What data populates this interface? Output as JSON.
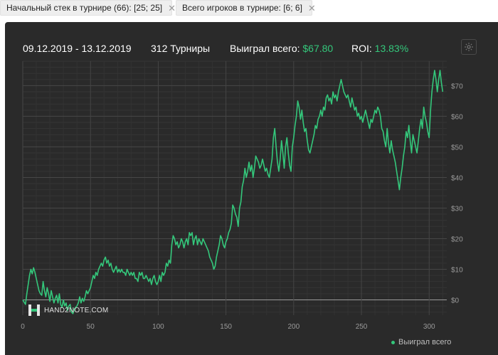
{
  "filters": [
    {
      "label": "Начальный стек в турнире (66): [25; 25]",
      "close": "✕"
    },
    {
      "label": "Всего игроков в турнире: [6; 6]",
      "close": "✕"
    }
  ],
  "summary": {
    "date_range": "09.12.2019 - 13.12.2019",
    "tournaments": "312 Турниры",
    "won_label": "Выиграл всего:",
    "won_value": "$67.80",
    "roi_label": "ROI:",
    "roi_value": "13.83%"
  },
  "watermark": {
    "logo_text": "HAND2NOTE.COM"
  },
  "colors": {
    "line": "#34c77b",
    "accent": "#34c77b",
    "panel": "#2a2a2a"
  },
  "chart_data": {
    "type": "line",
    "title": "",
    "xlabel": "",
    "ylabel": "",
    "xlim": [
      0,
      313
    ],
    "ylim": [
      -5,
      78
    ],
    "xticks": [
      0,
      50,
      100,
      150,
      200,
      250,
      300
    ],
    "yticks": [
      0,
      10,
      20,
      30,
      40,
      50,
      60,
      70
    ],
    "ytick_labels": [
      "$0",
      "$10",
      "$20",
      "$30",
      "$40",
      "$50",
      "$60",
      "$70"
    ],
    "grid": true,
    "legend_position": "bottom-right",
    "series": [
      {
        "name": "Выиграл всего",
        "points": [
          [
            0,
            0
          ],
          [
            2,
            -1.5
          ],
          [
            3,
            2
          ],
          [
            4,
            5
          ],
          [
            5,
            8
          ],
          [
            6,
            10
          ],
          [
            7,
            8.5
          ],
          [
            8,
            10.5
          ],
          [
            9,
            9
          ],
          [
            10,
            7
          ],
          [
            11,
            5
          ],
          [
            12,
            3
          ],
          [
            13,
            2
          ],
          [
            14,
            1.5
          ],
          [
            15,
            6
          ],
          [
            16,
            3
          ],
          [
            17,
            1
          ],
          [
            18,
            4
          ],
          [
            19,
            2
          ],
          [
            20,
            -0.5
          ],
          [
            21,
            3
          ],
          [
            22,
            1
          ],
          [
            23,
            -1
          ],
          [
            24,
            0.5
          ],
          [
            25,
            1.5
          ],
          [
            26,
            -1
          ],
          [
            27,
            2
          ],
          [
            28,
            -1.5
          ],
          [
            29,
            -2.5
          ],
          [
            30,
            0
          ],
          [
            31,
            -2
          ],
          [
            32,
            -1
          ],
          [
            33,
            -3.5
          ],
          [
            34,
            -2
          ],
          [
            35,
            -1.5
          ],
          [
            36,
            -4
          ],
          [
            37,
            -4.5
          ],
          [
            38,
            -3
          ],
          [
            39,
            -2.5
          ],
          [
            40,
            -2
          ],
          [
            41,
            -1
          ],
          [
            42,
            1
          ],
          [
            43,
            -1
          ],
          [
            44,
            0.5
          ],
          [
            45,
            -0.5
          ],
          [
            46,
            1
          ],
          [
            47,
            3
          ],
          [
            48,
            2
          ],
          [
            49,
            3
          ],
          [
            50,
            4
          ],
          [
            51,
            6
          ],
          [
            52,
            8
          ],
          [
            53,
            7
          ],
          [
            54,
            9
          ],
          [
            55,
            8
          ],
          [
            56,
            10
          ],
          [
            57,
            11
          ],
          [
            58,
            12
          ],
          [
            59,
            11
          ],
          [
            60,
            13
          ],
          [
            61,
            14
          ],
          [
            62,
            12
          ],
          [
            63,
            13
          ],
          [
            64,
            11
          ],
          [
            65,
            12
          ],
          [
            66,
            10
          ],
          [
            67,
            9
          ],
          [
            68,
            10
          ],
          [
            69,
            11
          ],
          [
            70,
            9
          ],
          [
            71,
            10
          ],
          [
            72,
            9
          ],
          [
            73,
            10
          ],
          [
            74,
            9
          ],
          [
            75,
            9
          ],
          [
            76,
            8
          ],
          [
            77,
            10
          ],
          [
            78,
            9
          ],
          [
            79,
            8
          ],
          [
            80,
            9
          ],
          [
            81,
            8
          ],
          [
            82,
            9
          ],
          [
            83,
            7
          ],
          [
            84,
            7
          ],
          [
            85,
            6
          ],
          [
            86,
            9
          ],
          [
            87,
            8
          ],
          [
            88,
            9
          ],
          [
            89,
            7
          ],
          [
            90,
            7
          ],
          [
            91,
            8
          ],
          [
            92,
            7
          ],
          [
            93,
            6
          ],
          [
            94,
            7
          ],
          [
            95,
            5
          ],
          [
            96,
            7
          ],
          [
            97,
            8
          ],
          [
            98,
            6
          ],
          [
            99,
            5
          ],
          [
            100,
            6
          ],
          [
            101,
            8
          ],
          [
            102,
            6
          ],
          [
            103,
            9
          ],
          [
            104,
            8
          ],
          [
            105,
            9
          ],
          [
            106,
            12
          ],
          [
            107,
            11
          ],
          [
            108,
            13
          ],
          [
            109,
            12
          ],
          [
            110,
            18
          ],
          [
            111,
            21
          ],
          [
            112,
            20
          ],
          [
            113,
            18
          ],
          [
            114,
            19
          ],
          [
            115,
            17
          ],
          [
            116,
            18
          ],
          [
            117,
            20
          ],
          [
            118,
            19
          ],
          [
            119,
            17
          ],
          [
            120,
            19
          ],
          [
            121,
            20
          ],
          [
            122,
            18
          ],
          [
            123,
            22
          ],
          [
            124,
            21
          ],
          [
            125,
            22
          ],
          [
            126,
            18
          ],
          [
            127,
            20
          ],
          [
            128,
            21
          ],
          [
            129,
            18
          ],
          [
            130,
            20
          ],
          [
            131,
            19
          ],
          [
            132,
            18
          ],
          [
            133,
            20
          ],
          [
            134,
            19
          ],
          [
            135,
            18
          ],
          [
            136,
            17
          ],
          [
            137,
            16
          ],
          [
            138,
            14
          ],
          [
            139,
            13
          ],
          [
            140,
            12
          ],
          [
            141,
            10
          ],
          [
            142,
            11
          ],
          [
            143,
            14
          ],
          [
            144,
            16
          ],
          [
            145,
            18
          ],
          [
            146,
            21
          ],
          [
            147,
            20
          ],
          [
            148,
            18
          ],
          [
            149,
            17
          ],
          [
            150,
            19
          ],
          [
            151,
            20
          ],
          [
            152,
            22
          ],
          [
            153,
            23
          ],
          [
            154,
            25
          ],
          [
            155,
            31
          ],
          [
            156,
            30
          ],
          [
            157,
            28
          ],
          [
            158,
            27
          ],
          [
            159,
            24
          ],
          [
            160,
            30
          ],
          [
            161,
            32
          ],
          [
            162,
            37
          ],
          [
            163,
            39
          ],
          [
            164,
            43
          ],
          [
            165,
            40
          ],
          [
            166,
            42
          ],
          [
            167,
            45
          ],
          [
            168,
            42
          ],
          [
            169,
            44
          ],
          [
            170,
            40
          ],
          [
            171,
            43
          ],
          [
            172,
            47
          ],
          [
            173,
            46
          ],
          [
            174,
            45
          ],
          [
            175,
            43
          ],
          [
            176,
            44
          ],
          [
            177,
            46
          ],
          [
            178,
            44
          ],
          [
            179,
            42
          ],
          [
            180,
            43
          ],
          [
            181,
            41
          ],
          [
            182,
            40
          ],
          [
            183,
            43
          ],
          [
            184,
            46
          ],
          [
            185,
            53
          ],
          [
            186,
            56
          ],
          [
            187,
            50
          ],
          [
            188,
            45
          ],
          [
            189,
            42
          ],
          [
            190,
            46
          ],
          [
            191,
            52
          ],
          [
            192,
            48
          ],
          [
            193,
            43
          ],
          [
            194,
            50
          ],
          [
            195,
            53
          ],
          [
            196,
            48
          ],
          [
            197,
            44
          ],
          [
            198,
            42
          ],
          [
            199,
            50
          ],
          [
            200,
            53
          ],
          [
            201,
            57
          ],
          [
            202,
            60
          ],
          [
            203,
            65
          ],
          [
            204,
            63
          ],
          [
            205,
            59
          ],
          [
            206,
            62
          ],
          [
            207,
            58
          ],
          [
            208,
            55
          ],
          [
            209,
            56
          ],
          [
            210,
            52
          ],
          [
            211,
            49
          ],
          [
            212,
            48
          ],
          [
            213,
            50
          ],
          [
            214,
            52
          ],
          [
            215,
            54
          ],
          [
            216,
            57
          ],
          [
            217,
            56
          ],
          [
            218,
            59
          ],
          [
            219,
            60
          ],
          [
            220,
            62
          ],
          [
            221,
            60
          ],
          [
            222,
            63
          ],
          [
            223,
            62
          ],
          [
            224,
            66
          ],
          [
            225,
            67
          ],
          [
            226,
            65
          ],
          [
            227,
            66
          ],
          [
            228,
            64
          ],
          [
            229,
            68
          ],
          [
            230,
            66
          ],
          [
            231,
            67
          ],
          [
            232,
            65
          ],
          [
            233,
            68
          ],
          [
            234,
            70
          ],
          [
            235,
            72
          ],
          [
            236,
            70
          ],
          [
            237,
            68
          ],
          [
            238,
            67
          ],
          [
            239,
            66
          ],
          [
            240,
            67
          ],
          [
            241,
            65
          ],
          [
            242,
            63
          ],
          [
            243,
            66
          ],
          [
            244,
            64
          ],
          [
            245,
            62
          ],
          [
            246,
            63
          ],
          [
            247,
            60
          ],
          [
            248,
            61
          ],
          [
            249,
            59
          ],
          [
            250,
            60
          ],
          [
            251,
            58
          ],
          [
            252,
            60
          ],
          [
            253,
            62
          ],
          [
            254,
            60
          ],
          [
            255,
            58
          ],
          [
            256,
            56
          ],
          [
            257,
            59
          ],
          [
            258,
            58
          ],
          [
            259,
            60
          ],
          [
            260,
            62
          ],
          [
            261,
            61
          ],
          [
            262,
            63
          ],
          [
            263,
            62
          ],
          [
            264,
            60
          ],
          [
            265,
            56
          ],
          [
            266,
            55
          ],
          [
            267,
            52
          ],
          [
            268,
            50
          ],
          [
            269,
            56
          ],
          [
            270,
            51
          ],
          [
            271,
            48
          ],
          [
            272,
            52
          ],
          [
            273,
            49
          ],
          [
            274,
            47
          ],
          [
            275,
            45
          ],
          [
            276,
            42
          ],
          [
            277,
            39
          ],
          [
            278,
            36
          ],
          [
            279,
            40
          ],
          [
            280,
            43
          ],
          [
            281,
            47
          ],
          [
            282,
            50
          ],
          [
            283,
            55
          ],
          [
            284,
            53
          ],
          [
            285,
            57
          ],
          [
            286,
            52
          ],
          [
            287,
            48
          ],
          [
            288,
            54
          ],
          [
            289,
            52
          ],
          [
            290,
            50
          ],
          [
            291,
            48
          ],
          [
            292,
            52
          ],
          [
            293,
            56
          ],
          [
            294,
            59
          ],
          [
            295,
            56
          ],
          [
            296,
            63
          ],
          [
            297,
            60
          ],
          [
            298,
            58
          ],
          [
            299,
            55
          ],
          [
            300,
            53
          ],
          [
            301,
            62
          ],
          [
            302,
            68
          ],
          [
            303,
            72
          ],
          [
            304,
            75
          ],
          [
            305,
            72
          ],
          [
            306,
            68
          ],
          [
            307,
            72
          ],
          [
            308,
            75
          ],
          [
            309,
            71
          ],
          [
            310,
            68
          ]
        ]
      }
    ]
  }
}
